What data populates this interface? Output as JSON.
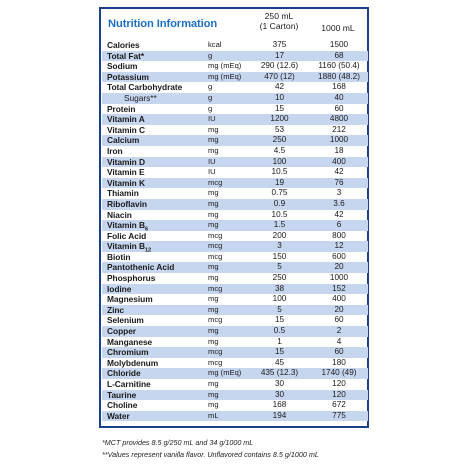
{
  "panel": {
    "title": "Nutrition Information",
    "col1_line1": "250 mL",
    "col1_line2": "(1 Carton)",
    "col2": "1000 mL"
  },
  "rows": [
    {
      "name": "Calories",
      "unit": "kcal",
      "v1": "375",
      "v2": "1500",
      "shaded": false
    },
    {
      "name": "Total Fat*",
      "unit": "g",
      "v1": "17",
      "v2": "68",
      "shaded": true
    },
    {
      "name": "Sodium",
      "unit": "mg (mEq)",
      "v1": "290 (12.6)",
      "v2": "1160 (50.4)",
      "shaded": false
    },
    {
      "name": "Potassium",
      "unit": "mg (mEq)",
      "v1": "470 (12)",
      "v2": "1880 (48.2)",
      "shaded": true
    },
    {
      "name": "Total Carbohydrate",
      "unit": "g",
      "v1": "42",
      "v2": "168",
      "shaded": false
    },
    {
      "name": "Sugars**",
      "unit": "g",
      "v1": "10",
      "v2": "40",
      "shaded": true,
      "indent": true
    },
    {
      "name": "Protein",
      "unit": "g",
      "v1": "15",
      "v2": "60",
      "shaded": false
    },
    {
      "name": "Vitamin A",
      "unit": "IU",
      "v1": "1200",
      "v2": "4800",
      "shaded": true
    },
    {
      "name": "Vitamin C",
      "unit": "mg",
      "v1": "53",
      "v2": "212",
      "shaded": false
    },
    {
      "name": "Calcium",
      "unit": "mg",
      "v1": "250",
      "v2": "1000",
      "shaded": true
    },
    {
      "name": "Iron",
      "unit": "mg",
      "v1": "4.5",
      "v2": "18",
      "shaded": false
    },
    {
      "name": "Vitamin D",
      "unit": "IU",
      "v1": "100",
      "v2": "400",
      "shaded": true
    },
    {
      "name": "Vitamin E",
      "unit": "IU",
      "v1": "10.5",
      "v2": "42",
      "shaded": false
    },
    {
      "name": "Vitamin K",
      "unit": "mcg",
      "v1": "19",
      "v2": "76",
      "shaded": true
    },
    {
      "name": "Thiamin",
      "unit": "mg",
      "v1": "0.75",
      "v2": "3",
      "shaded": false
    },
    {
      "name": "Riboflavin",
      "unit": "mg",
      "v1": "0.9",
      "v2": "3.6",
      "shaded": true
    },
    {
      "name": "Niacin",
      "unit": "mg",
      "v1": "10.5",
      "v2": "42",
      "shaded": false
    },
    {
      "name": "Vitamin B",
      "sub": "6",
      "unit": "mg",
      "v1": "1.5",
      "v2": "6",
      "shaded": true
    },
    {
      "name": "Folic Acid",
      "unit": "mcg",
      "v1": "200",
      "v2": "800",
      "shaded": false
    },
    {
      "name": "Vitamin B",
      "sub": "12",
      "unit": "mcg",
      "v1": "3",
      "v2": "12",
      "shaded": true
    },
    {
      "name": "Biotin",
      "unit": "mcg",
      "v1": "150",
      "v2": "600",
      "shaded": false
    },
    {
      "name": "Pantothenic Acid",
      "unit": "mg",
      "v1": "5",
      "v2": "20",
      "shaded": true
    },
    {
      "name": "Phosphorus",
      "unit": "mg",
      "v1": "250",
      "v2": "1000",
      "shaded": false
    },
    {
      "name": "Iodine",
      "unit": "mcg",
      "v1": "38",
      "v2": "152",
      "shaded": true
    },
    {
      "name": "Magnesium",
      "unit": "mg",
      "v1": "100",
      "v2": "400",
      "shaded": false
    },
    {
      "name": "Zinc",
      "unit": "mg",
      "v1": "5",
      "v2": "20",
      "shaded": true
    },
    {
      "name": "Selenium",
      "unit": "mcg",
      "v1": "15",
      "v2": "60",
      "shaded": false
    },
    {
      "name": "Copper",
      "unit": "mg",
      "v1": "0.5",
      "v2": "2",
      "shaded": true
    },
    {
      "name": "Manganese",
      "unit": "mg",
      "v1": "1",
      "v2": "4",
      "shaded": false
    },
    {
      "name": "Chromium",
      "unit": "mcg",
      "v1": "15",
      "v2": "60",
      "shaded": true
    },
    {
      "name": "Molybdenum",
      "unit": "mcg",
      "v1": "45",
      "v2": "180",
      "shaded": false
    },
    {
      "name": "Chloride",
      "unit": "mg (mEq)",
      "v1": "435 (12.3)",
      "v2": "1740 (49)",
      "shaded": true
    },
    {
      "name": "L-Carnitine",
      "unit": "mg",
      "v1": "30",
      "v2": "120",
      "shaded": false
    },
    {
      "name": "Taurine",
      "unit": "mg",
      "v1": "30",
      "v2": "120",
      "shaded": true
    },
    {
      "name": "Choline",
      "unit": "mg",
      "v1": "168",
      "v2": "672",
      "shaded": false
    },
    {
      "name": "Water",
      "unit": "mL",
      "v1": "194",
      "v2": "775",
      "shaded": true
    }
  ],
  "footnotes": [
    "*MCT provides 8.5 g/250 mL and 34 g/1000 mL",
    "**Values represent vanilla flavor. Unflavored contains 8.5 g/1000 mL"
  ],
  "colors": {
    "border": "#1c3f8a",
    "title": "#1c6fc0",
    "row_shade": "#c7d6ef"
  }
}
